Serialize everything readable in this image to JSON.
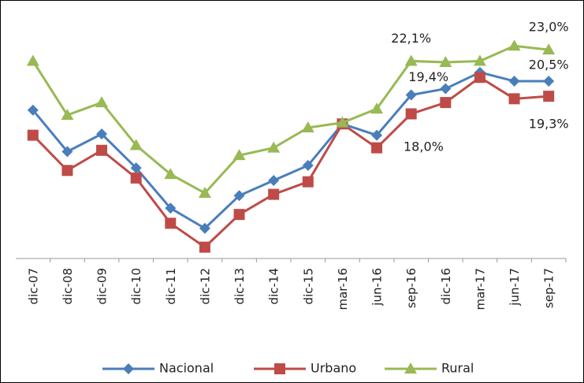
{
  "chart_data": {
    "type": "line",
    "categories": [
      "dic-07",
      "dic-08",
      "dic-09",
      "dic-10",
      "dic-11",
      "dic-12",
      "dic-13",
      "dic-14",
      "dic-15",
      "mar-16",
      "jun-16",
      "sep-16",
      "dic-16",
      "mar-17",
      "jun-17",
      "sep-17"
    ],
    "series": [
      {
        "name": "Nacional",
        "color": "#4a7ebb",
        "marker": "diamond",
        "values": [
          18.2,
          14.9,
          16.3,
          13.6,
          10.4,
          8.8,
          11.4,
          12.6,
          13.8,
          17.1,
          16.2,
          19.4,
          19.9,
          21.2,
          20.5,
          20.5
        ],
        "value_labels": [
          null,
          null,
          null,
          null,
          null,
          null,
          null,
          null,
          null,
          null,
          null,
          "19,4%",
          null,
          null,
          null,
          "20,5%"
        ]
      },
      {
        "name": "Urbano",
        "color": "#be4b48",
        "marker": "square",
        "values": [
          16.2,
          13.4,
          15.0,
          12.8,
          9.2,
          7.3,
          9.9,
          11.5,
          12.5,
          17.1,
          15.2,
          17.9,
          18.8,
          20.8,
          19.1,
          19.3
        ],
        "value_labels": [
          null,
          null,
          null,
          null,
          null,
          null,
          null,
          null,
          null,
          null,
          null,
          null,
          null,
          null,
          null,
          "19,3%"
        ]
      },
      {
        "name": "Rural",
        "color": "#98b954",
        "marker": "triangle",
        "values": [
          22.1,
          17.8,
          18.8,
          15.4,
          13.1,
          11.6,
          14.6,
          15.2,
          16.8,
          17.2,
          18.3,
          22.1,
          22.0,
          22.1,
          23.3,
          23.0
        ],
        "value_labels": [
          null,
          null,
          null,
          null,
          null,
          null,
          null,
          null,
          null,
          null,
          null,
          "22,1%",
          null,
          null,
          null,
          "23,0%"
        ]
      }
    ],
    "annotations": [
      "18,0%"
    ],
    "ylim": [
      6.4,
      25.7
    ],
    "legend": "bottom"
  }
}
